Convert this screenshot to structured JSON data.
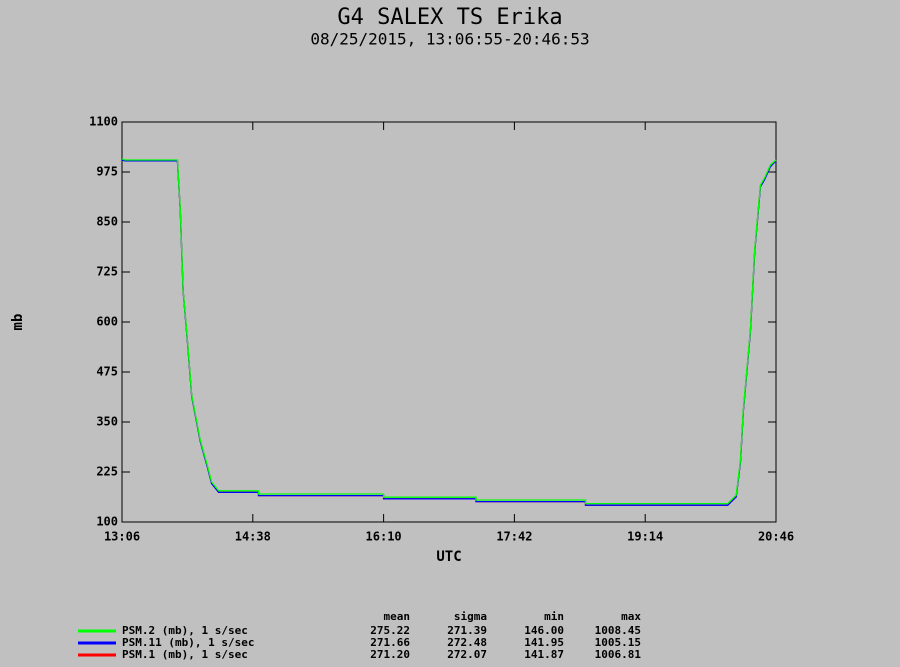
{
  "chart_data": {
    "type": "line",
    "title": "G4 SALEX TS Erika",
    "subtitle": "08/25/2015, 13:06:55-20:46:53",
    "x_label": "UTC",
    "y_label": "mb",
    "xlim": [
      "13:06",
      "20:46"
    ],
    "xticks": [
      "13:06",
      "14:38",
      "16:10",
      "17:42",
      "19:14",
      "20:46"
    ],
    "ylim": [
      100,
      1100
    ],
    "yticks": [
      100,
      225,
      350,
      475,
      600,
      725,
      850,
      975,
      1100
    ],
    "x": [
      "13:06",
      "13:08",
      "13:45",
      "13:47",
      "13:49",
      "13:52",
      "13:55",
      "14:01",
      "14:06",
      "14:09",
      "14:14",
      "14:42",
      "14:42",
      "16:10",
      "16:10",
      "17:15",
      "17:15",
      "18:32",
      "18:32",
      "20:12",
      "20:18",
      "20:21",
      "20:23",
      "20:28",
      "20:31",
      "20:35",
      "20:38",
      "20:42",
      "20:46"
    ],
    "stats_header": [
      "mean",
      "sigma",
      "min",
      "max"
    ],
    "series": [
      {
        "name": "PSM.2 (mb), 1 s/sec",
        "color": "#00ff00",
        "stats": [
          "275.22",
          "271.39",
          "146.00",
          "1008.45"
        ],
        "values": [
          1008,
          1005,
          1005,
          880,
          680,
          555,
          417,
          305,
          242,
          200,
          178,
          178,
          170,
          170,
          162,
          162,
          155,
          155,
          146,
          146,
          167,
          255,
          380,
          580,
          780,
          942,
          960,
          992,
          1005
        ]
      },
      {
        "name": "PSM.11 (mb), 1 s/sec",
        "color": "#0000ff",
        "stats": [
          "271.66",
          "272.48",
          "141.95",
          "1005.15"
        ],
        "values": [
          1005,
          1003,
          1003,
          878,
          678,
          552,
          414,
          302,
          238,
          196,
          174,
          174,
          166,
          166,
          158,
          158,
          151,
          151,
          142,
          142,
          163,
          251,
          376,
          576,
          776,
          938,
          956,
          988,
          1003
        ]
      },
      {
        "name": "PSM.1 (mb), 1 s/sec",
        "color": "#ff0000",
        "stats": [
          "271.20",
          "272.07",
          "141.87",
          "1006.81"
        ],
        "values": [
          1006,
          1004,
          1004,
          879,
          679,
          553,
          415,
          303,
          239,
          197,
          174,
          174,
          166,
          166,
          158,
          158,
          151,
          151,
          142,
          142,
          163,
          252,
          377,
          577,
          777,
          939,
          957,
          989,
          1004
        ]
      }
    ]
  }
}
